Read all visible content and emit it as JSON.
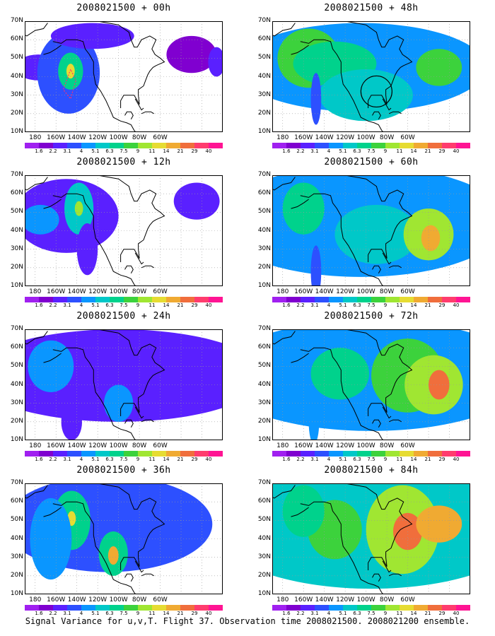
{
  "panels": [
    {
      "title": "2008021500 + 00h"
    },
    {
      "title": "2008021500 + 48h"
    },
    {
      "title": "2008021500 + 12h"
    },
    {
      "title": "2008021500 + 60h"
    },
    {
      "title": "2008021500 + 24h"
    },
    {
      "title": "2008021500 + 72h"
    },
    {
      "title": "2008021500 + 36h"
    },
    {
      "title": "2008021500 + 84h"
    }
  ],
  "lat_labels": [
    "70N",
    "60N",
    "50N",
    "40N",
    "30N",
    "20N",
    "10N"
  ],
  "lon_labels": [
    "180",
    "160W",
    "140W",
    "120W",
    "100W",
    "80W",
    "60W"
  ],
  "colorbar": {
    "ticks": [
      "1.6",
      "2.2",
      "3.1",
      "4",
      "5.1",
      "6.3",
      "7.5",
      "9",
      "11",
      "14",
      "21",
      "29",
      "40"
    ],
    "colors": [
      "#a020f0",
      "#8000d0",
      "#5a20ff",
      "#2d50ff",
      "#0a96ff",
      "#00c8c8",
      "#00d28c",
      "#3cd23c",
      "#a0e632",
      "#e6dc32",
      "#f0aa32",
      "#f06e3c",
      "#ff3c6e",
      "#ff1493"
    ]
  },
  "caption": "Signal Variance for u,v,T. Flight 37. Observation time 2008021500. 2008021200 ensemble."
}
